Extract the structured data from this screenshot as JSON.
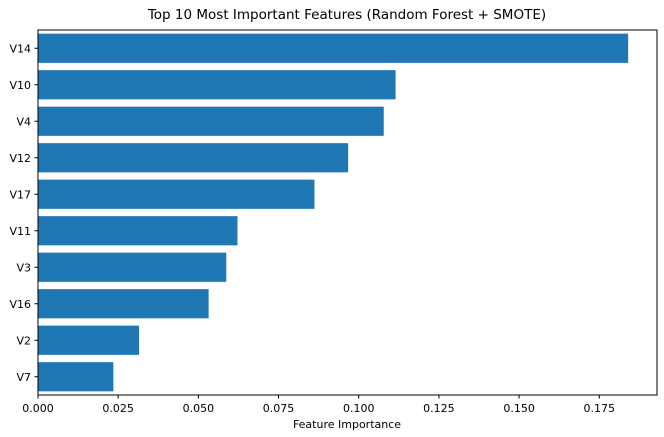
{
  "chart_data": {
    "type": "bar",
    "orientation": "horizontal",
    "title": "Top 10 Most Important Features (Random Forest + SMOTE)",
    "xlabel": "Feature Importance",
    "ylabel": "",
    "categories": [
      "V14",
      "V10",
      "V4",
      "V12",
      "V17",
      "V11",
      "V3",
      "V16",
      "V2",
      "V7"
    ],
    "values": [
      0.184,
      0.1115,
      0.1078,
      0.0967,
      0.0862,
      0.0622,
      0.0587,
      0.0532,
      0.0315,
      0.0235
    ],
    "xlim": [
      0.0,
      0.193
    ],
    "xticks": [
      0.0,
      0.025,
      0.05,
      0.075,
      0.1,
      0.125,
      0.15,
      0.175
    ],
    "xtick_labels": [
      "0.000",
      "0.025",
      "0.050",
      "0.075",
      "0.100",
      "0.125",
      "0.150",
      "0.175"
    ],
    "grid": false,
    "bar_color": "#1f77b4"
  }
}
